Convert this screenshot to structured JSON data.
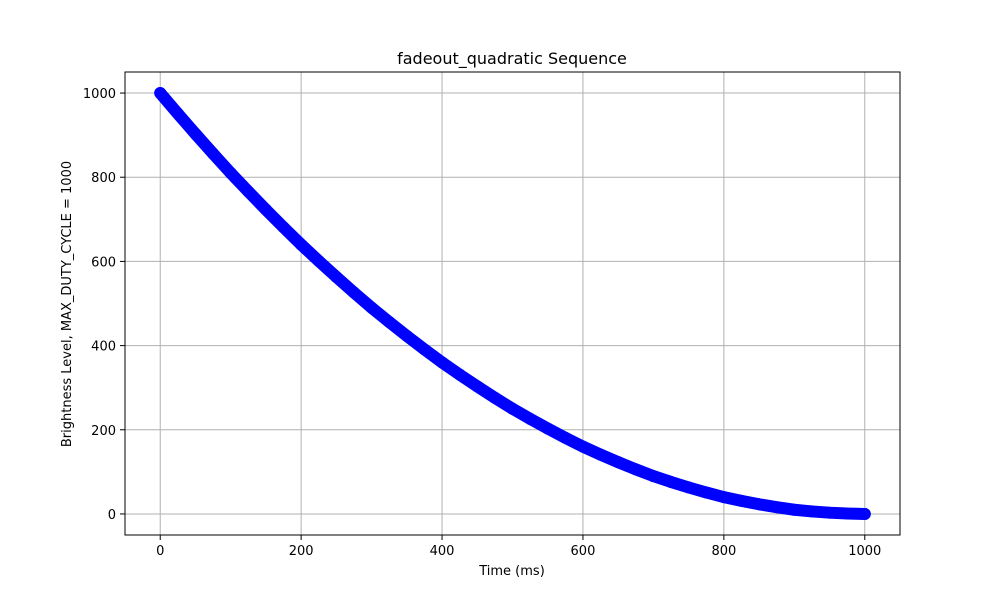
{
  "chart_data": {
    "type": "scatter",
    "title": "fadeout_quadratic Sequence",
    "xlabel": "Time (ms)",
    "ylabel": "Brightness Level, MAX_DUTY_CYCLE = 1000",
    "xlim": [
      -50,
      1050
    ],
    "ylim": [
      -50,
      1050
    ],
    "x_ticks": [
      0,
      200,
      400,
      600,
      800,
      1000
    ],
    "y_ticks": [
      0,
      200,
      400,
      600,
      800,
      1000
    ],
    "x_tick_labels": [
      "0",
      "200",
      "400",
      "600",
      "800",
      "1000"
    ],
    "y_tick_labels": [
      "0",
      "200",
      "400",
      "600",
      "800",
      "1000"
    ],
    "grid": true,
    "marker_color": "#0000ff",
    "series": [
      {
        "x": [
          0,
          25,
          50,
          75,
          100,
          125,
          150,
          175,
          200,
          225,
          250,
          275,
          300,
          325,
          350,
          375,
          400,
          425,
          450,
          475,
          500,
          525,
          550,
          575,
          600,
          625,
          650,
          675,
          700,
          725,
          750,
          775,
          800,
          825,
          850,
          875,
          900,
          925,
          950,
          975,
          1000
        ],
        "values": [
          1000,
          951,
          903,
          856,
          810,
          766,
          723,
          681,
          640,
          601,
          563,
          526,
          490,
          456,
          423,
          391,
          360,
          331,
          303,
          276,
          250,
          226,
          203,
          181,
          160,
          141,
          123,
          106,
          90,
          76,
          63,
          51,
          40,
          31,
          23,
          16,
          10,
          6,
          3,
          1,
          0
        ]
      }
    ]
  }
}
